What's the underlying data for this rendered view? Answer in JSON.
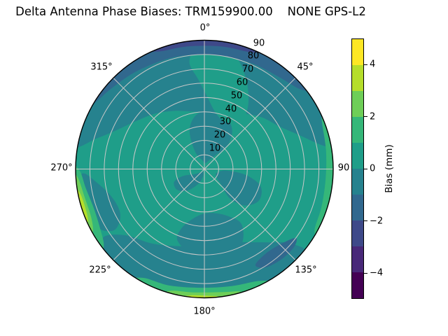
{
  "title": "Delta Antenna Phase Biases: TRM159900.00    NONE GPS-L2",
  "polar": {
    "azimuth_labels": [
      "0°",
      "45°",
      "90",
      "135°",
      "180°",
      "225°",
      "270°",
      "315°"
    ],
    "zenith_labels": [
      "10",
      "20",
      "30",
      "40",
      "50",
      "60",
      "70",
      "80",
      "90"
    ]
  },
  "colorbar": {
    "label": "Bias (mm)",
    "tick_labels": [
      "4",
      "2",
      "0",
      "−2",
      "−4"
    ]
  },
  "chart_data": {
    "type": "heatmap",
    "subtype": "polar_filled_contour_skyplot",
    "title": "Delta Antenna Phase Biases: TRM159900.00    NONE GPS-L2",
    "antenna": "TRM159900.00 NONE",
    "signal": "GPS-L2",
    "colorbar_label": "Bias (mm)",
    "value_range": [
      -5,
      5
    ],
    "colorbar_ticks": [
      4,
      2,
      0,
      -2,
      -4
    ],
    "contour_levels": [
      -5,
      -4,
      -3,
      -2,
      -1,
      0,
      1,
      2,
      3,
      4,
      5
    ],
    "colormap": "viridis",
    "level_colors": [
      "#440154",
      "#482878",
      "#3e4989",
      "#31688e",
      "#26828e",
      "#1f9e89",
      "#35b779",
      "#6ece58",
      "#b5de2b",
      "#fde725"
    ],
    "azimuth_ticks_deg": [
      0,
      45,
      90,
      135,
      180,
      225,
      270,
      315
    ],
    "zenith_rings": [
      10,
      20,
      30,
      40,
      50,
      60,
      70,
      80,
      90
    ],
    "grid_color": "#c8c8c8",
    "base_bias_mm": "0 to 1",
    "notable_features": [
      {
        "azimuth": "300°–50°",
        "zenith": "80–90",
        "bias_mm": "-1 to -3",
        "note": "dark blue band along northern horizon"
      },
      {
        "azimuth": "340°–25°",
        "zenith": "87–90",
        "bias_mm": "-2 to -3",
        "note": "darkest navy sliver at rim near 0°"
      },
      {
        "azimuth": "285°–80°",
        "zenith": "40–90",
        "bias_mm": "-1 to 0",
        "note": "broad darker teal cap over northern half"
      },
      {
        "azimuth": "355°–40°",
        "zenith": "37–86",
        "bias_mm": "0 to 1",
        "note": "lighter tongue cutting through northern cap"
      },
      {
        "azimuth": "235°–270°",
        "zenith": "80–90",
        "bias_mm": "1 to 4",
        "note": "bright green/yellow band at western horizon"
      },
      {
        "azimuth": "150°–210°",
        "zenith": "83–90",
        "bias_mm": "1 to 4",
        "note": "green-to-yellow band at southern horizon"
      },
      {
        "azimuth": "65°–120°",
        "zenith": "85–90",
        "bias_mm": "1 to 2",
        "note": "green strip at eastern horizon"
      },
      {
        "azimuth": "127°–152°",
        "zenith": "73–83",
        "bias_mm": "-1 to -2",
        "note": "small blue streak near 135°"
      },
      {
        "azimuth": "130°–236°",
        "zenith": "52–90",
        "bias_mm": "-1 to 0",
        "note": "darker teal region across southern outer zone"
      }
    ],
    "field_regions": [
      {
        "name": "base-disk",
        "kind": "disk",
        "level": 5
      },
      {
        "name": "north-outer-cap",
        "kind": "blob",
        "level": 4,
        "points": [
          [
            -80,
            93
          ],
          [
            -60,
            93
          ],
          [
            -40,
            93
          ],
          [
            -20,
            93
          ],
          [
            0,
            93
          ],
          [
            20,
            93
          ],
          [
            40,
            93
          ],
          [
            60,
            93
          ],
          [
            80,
            93
          ],
          [
            79,
            85
          ],
          [
            70,
            70
          ],
          [
            60,
            60
          ],
          [
            48,
            54
          ],
          [
            34,
            47
          ],
          [
            20,
            42
          ],
          [
            8,
            40
          ],
          [
            -5,
            40
          ],
          [
            -16,
            42
          ],
          [
            -28,
            46
          ],
          [
            -42,
            52
          ],
          [
            -56,
            59
          ],
          [
            -66,
            67
          ],
          [
            -74,
            78
          ]
        ]
      },
      {
        "name": "south-outer-band",
        "kind": "blob",
        "level": 4,
        "points": [
          [
            130,
            93
          ],
          [
            150,
            93
          ],
          [
            170,
            93
          ],
          [
            190,
            93
          ],
          [
            210,
            93
          ],
          [
            230,
            93
          ],
          [
            236,
            85
          ],
          [
            230,
            72
          ],
          [
            216,
            64
          ],
          [
            202,
            58
          ],
          [
            188,
            54
          ],
          [
            172,
            52
          ],
          [
            158,
            55
          ],
          [
            147,
            61
          ],
          [
            138,
            69
          ],
          [
            131,
            79
          ]
        ]
      },
      {
        "name": "south-inner-tongue",
        "kind": "blob",
        "level": 4,
        "points": [
          [
            152,
            57
          ],
          [
            146,
            46
          ],
          [
            153,
            37
          ],
          [
            165,
            32
          ],
          [
            179,
            31
          ],
          [
            192,
            35
          ],
          [
            201,
            44
          ],
          [
            201,
            53
          ],
          [
            190,
            59
          ],
          [
            175,
            61
          ],
          [
            161,
            61
          ]
        ]
      },
      {
        "name": "north-center-blob",
        "kind": "blob",
        "level": 4,
        "points": [
          [
            -28,
            14
          ],
          [
            -21,
            29
          ],
          [
            -9,
            38
          ],
          [
            6,
            42
          ],
          [
            22,
            40
          ],
          [
            36,
            33
          ],
          [
            45,
            22
          ],
          [
            38,
            12
          ],
          [
            24,
            6
          ],
          [
            6,
            4
          ],
          [
            -12,
            6
          ]
        ]
      },
      {
        "name": "east-blob",
        "kind": "blob",
        "level": 4,
        "points": [
          [
            94,
            15
          ],
          [
            98,
            29
          ],
          [
            107,
            41
          ],
          [
            120,
            44
          ],
          [
            132,
            38
          ],
          [
            139,
            27
          ],
          [
            133,
            16
          ],
          [
            118,
            9
          ],
          [
            103,
            10
          ]
        ]
      },
      {
        "name": "west-inner-band",
        "kind": "blob",
        "level": 4,
        "points": [
          [
            236,
            77
          ],
          [
            241,
            85
          ],
          [
            251,
            89
          ],
          [
            262,
            89
          ],
          [
            268,
            85
          ],
          [
            263,
            76
          ],
          [
            254,
            68
          ],
          [
            244,
            66
          ],
          [
            238,
            70
          ]
        ]
      },
      {
        "name": "southwest-center-blob",
        "kind": "blob",
        "level": 4,
        "points": [
          [
            190,
            5
          ],
          [
            202,
            11
          ],
          [
            218,
            19
          ],
          [
            233,
            24
          ],
          [
            247,
            23
          ],
          [
            252,
            16
          ],
          [
            243,
            8
          ],
          [
            226,
            3
          ],
          [
            206,
            2
          ]
        ]
      },
      {
        "name": "north-light-tongue",
        "kind": "blob",
        "level": 5,
        "points": [
          [
            -4,
            84
          ],
          [
            7,
            86
          ],
          [
            16,
            81
          ],
          [
            23,
            72
          ],
          [
            29,
            63
          ],
          [
            35,
            53
          ],
          [
            38,
            43
          ],
          [
            30,
            37
          ],
          [
            18,
            37
          ],
          [
            9,
            42
          ],
          [
            2,
            51
          ],
          [
            -4,
            63
          ],
          [
            -8,
            75
          ]
        ]
      },
      {
        "name": "northwest-light-patch",
        "kind": "blob",
        "level": 5,
        "points": [
          [
            288,
            12
          ],
          [
            296,
            24
          ],
          [
            308,
            32
          ],
          [
            322,
            33
          ],
          [
            330,
            24
          ],
          [
            324,
            14
          ],
          [
            310,
            8
          ],
          [
            296,
            7
          ]
        ]
      },
      {
        "name": "north-rim-blue-band",
        "kind": "blob",
        "level": 3,
        "points": [
          [
            -62,
            93
          ],
          [
            -40,
            93
          ],
          [
            -20,
            93
          ],
          [
            0,
            93
          ],
          [
            20,
            93
          ],
          [
            40,
            93
          ],
          [
            53,
            93
          ],
          [
            50,
            87
          ],
          [
            40,
            83
          ],
          [
            24,
            81
          ],
          [
            5,
            80
          ],
          [
            -15,
            81
          ],
          [
            -34,
            83
          ],
          [
            -49,
            86
          ],
          [
            -58,
            89
          ]
        ]
      },
      {
        "name": "north-rim-navy-sliver",
        "kind": "blob",
        "level": 2,
        "points": [
          [
            -26,
            93
          ],
          [
            -8,
            93
          ],
          [
            10,
            93
          ],
          [
            26,
            93
          ],
          [
            22,
            88
          ],
          [
            8,
            86.5
          ],
          [
            -8,
            86.5
          ],
          [
            -21,
            88
          ]
        ]
      },
      {
        "name": "southeast-blue-streak",
        "kind": "blob",
        "level": 3,
        "points": [
          [
            127,
            80
          ],
          [
            134,
            75
          ],
          [
            144,
            73
          ],
          [
            152,
            76
          ],
          [
            148,
            81
          ],
          [
            139,
            83
          ],
          [
            131,
            83
          ]
        ]
      },
      {
        "name": "east-rim-green",
        "kind": "blob",
        "level": 6,
        "points": [
          [
            64,
            93
          ],
          [
            82,
            93
          ],
          [
            100,
            93
          ],
          [
            120,
            93
          ],
          [
            119,
            88
          ],
          [
            108,
            86
          ],
          [
            95,
            85
          ],
          [
            81,
            86
          ],
          [
            67,
            89
          ]
        ]
      },
      {
        "name": "west-rim-green",
        "kind": "blob",
        "level": 6,
        "points": [
          [
            232,
            93
          ],
          [
            245,
            93
          ],
          [
            258,
            93
          ],
          [
            272,
            93
          ],
          [
            269,
            87
          ],
          [
            261,
            84
          ],
          [
            250,
            82
          ],
          [
            240,
            84
          ],
          [
            233,
            88
          ]
        ]
      },
      {
        "name": "south-rim-green",
        "kind": "blob",
        "level": 6,
        "points": [
          [
            149,
            93
          ],
          [
            165,
            93
          ],
          [
            182,
            93
          ],
          [
            198,
            93
          ],
          [
            213,
            93
          ],
          [
            209,
            87
          ],
          [
            197,
            85
          ],
          [
            182,
            83
          ],
          [
            167,
            84
          ],
          [
            154,
            87
          ]
        ]
      },
      {
        "name": "west-rim-lightgreen",
        "kind": "blob",
        "level": 7,
        "points": [
          [
            240,
            93
          ],
          [
            251,
            93
          ],
          [
            263,
            93
          ],
          [
            268,
            91
          ],
          [
            265,
            88
          ],
          [
            257,
            86
          ],
          [
            247,
            86
          ],
          [
            241,
            89
          ]
        ]
      },
      {
        "name": "south-rim-lightgreen",
        "kind": "blob",
        "level": 7,
        "points": [
          [
            163,
            93
          ],
          [
            176,
            93
          ],
          [
            190,
            93
          ],
          [
            198,
            92
          ],
          [
            195,
            88
          ],
          [
            185,
            86.5
          ],
          [
            171,
            87
          ],
          [
            164,
            89
          ]
        ]
      },
      {
        "name": "west-rim-yellowgreen",
        "kind": "blob",
        "level": 8,
        "points": [
          [
            245,
            93
          ],
          [
            254,
            93
          ],
          [
            262,
            92
          ],
          [
            259,
            88.5
          ],
          [
            252,
            87.5
          ],
          [
            246,
            89
          ]
        ]
      },
      {
        "name": "south-rim-yellowgreen",
        "kind": "blob",
        "level": 8,
        "points": [
          [
            172,
            93
          ],
          [
            181,
            93
          ],
          [
            190,
            92
          ],
          [
            187,
            89
          ],
          [
            179,
            88.5
          ],
          [
            173,
            90
          ]
        ]
      }
    ]
  }
}
